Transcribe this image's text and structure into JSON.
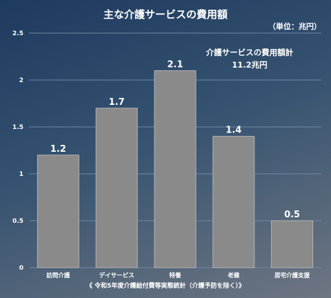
{
  "header": {
    "title": "主な介護サービスの費用額",
    "unit": "（単位：兆円）"
  },
  "annotation": {
    "label": "介護サービスの費用額計",
    "value": "11.2兆円"
  },
  "footer": {
    "source": "《 令和5年度介護給付費等実態統計（介護予防を除く）》"
  },
  "colors": {
    "bar": "#8a8a8a",
    "bar_stroke": "#b4b4b4",
    "grid": "#6d8aa6",
    "text": "#ffffff"
  },
  "chart_data": {
    "type": "bar",
    "title": "主な介護サービスの費用額",
    "categories": [
      "訪問介護",
      "デイサービス",
      "特養",
      "老健",
      "居宅介護支援"
    ],
    "values": [
      1.2,
      1.7,
      2.1,
      1.4,
      0.5
    ],
    "data_labels": [
      "1.2",
      "1.7",
      "2.1",
      "1.4",
      "0.5"
    ],
    "y_ticks": [
      "0",
      "0.5",
      "1",
      "1.5",
      "2",
      "2.5"
    ],
    "ylim": [
      0,
      2.5
    ],
    "grid": true,
    "legend": "none"
  }
}
